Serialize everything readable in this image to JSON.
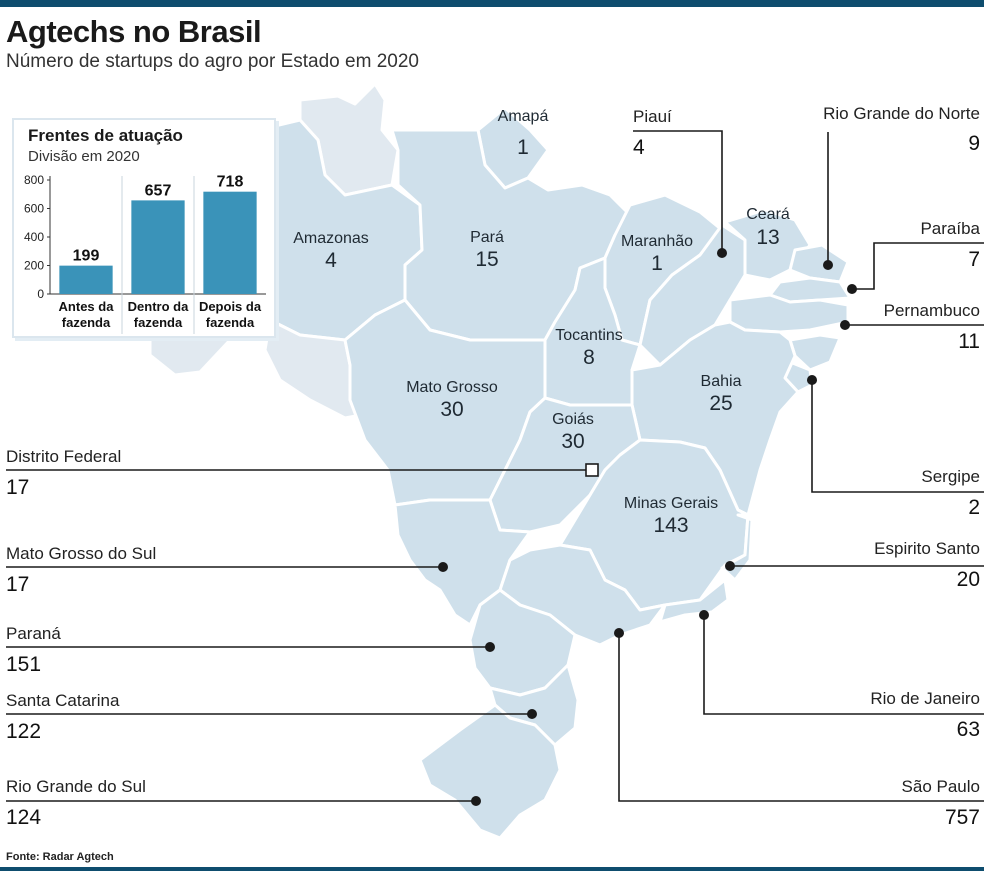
{
  "title": "Agtechs no Brasil",
  "subtitle": "Número de startups do agro por Estado em 2020",
  "source": "Fonte: Radar Agtech",
  "colors": {
    "bar": "#3a93b9",
    "map_fill": "#cfe0eb",
    "map_fill_light": "#e1e9f0",
    "map_stroke": "#ffffff",
    "accent_bar": "#0e4d6e"
  },
  "chart_data": [
    {
      "type": "bar",
      "title": "Frentes de atuação",
      "subtitle": "Divisão em 2020",
      "categories": [
        "Antes da fazenda",
        "Dentro da fazenda",
        "Depois da fazenda"
      ],
      "category_lines": [
        [
          "Antes da",
          "fazenda"
        ],
        [
          "Dentro da",
          "fazenda"
        ],
        [
          "Depois da",
          "fazenda"
        ]
      ],
      "values": [
        199,
        657,
        718
      ],
      "value_labels": [
        "199",
        "657",
        "718"
      ],
      "yticks": [
        "0",
        "200",
        "400",
        "600",
        "800"
      ],
      "ylim": [
        0,
        800
      ],
      "grid": false
    },
    {
      "type": "table",
      "title": "Número de startups do agro por Estado em 2020",
      "states": [
        {
          "name": "Amapá",
          "value": "1"
        },
        {
          "name": "Piauí",
          "value": "4"
        },
        {
          "name": "Rio Grande do Norte",
          "value": "9"
        },
        {
          "name": "Amazonas",
          "value": "4"
        },
        {
          "name": "Pará",
          "value": "15"
        },
        {
          "name": "Maranhão",
          "value": "1"
        },
        {
          "name": "Ceará",
          "value": "13"
        },
        {
          "name": "Paraíba",
          "value": "7"
        },
        {
          "name": "Pernambuco",
          "value": "11"
        },
        {
          "name": "Tocantins",
          "value": "8"
        },
        {
          "name": "Mato Grosso",
          "value": "30"
        },
        {
          "name": "Bahia",
          "value": "25"
        },
        {
          "name": "Goiás",
          "value": "30"
        },
        {
          "name": "Distrito Federal",
          "value": "17"
        },
        {
          "name": "Sergipe",
          "value": "2"
        },
        {
          "name": "Minas Gerais",
          "value": "143"
        },
        {
          "name": "Mato Grosso do Sul",
          "value": "17"
        },
        {
          "name": "Espírito Santo",
          "value": "20"
        },
        {
          "name": "Paraná",
          "value": "151"
        },
        {
          "name": "Santa Catarina",
          "value": "122"
        },
        {
          "name": "Rio de Janeiro",
          "value": "63"
        },
        {
          "name": "Rio Grande do Sul",
          "value": "124"
        },
        {
          "name": "São Paulo",
          "value": "757"
        }
      ]
    }
  ],
  "labels": {
    "amapa": {
      "name": "Amapá",
      "value": "1"
    },
    "piaui": {
      "name": "Piauí",
      "value": "4"
    },
    "rn": {
      "name": "Rio Grande do Norte",
      "value": "9"
    },
    "amazonas": {
      "name": "Amazonas",
      "value": "4"
    },
    "para": {
      "name": "Pará",
      "value": "15"
    },
    "maranhao": {
      "name": "Maranhão",
      "value": "1"
    },
    "ceara": {
      "name": "Ceará",
      "value": "13"
    },
    "paraiba": {
      "name": "Paraíba",
      "value": "7"
    },
    "pernambuco": {
      "name": "Pernambuco",
      "value": "11"
    },
    "tocantins": {
      "name": "Tocantins",
      "value": "8"
    },
    "mt": {
      "name": "Mato Grosso",
      "value": "30"
    },
    "bahia": {
      "name": "Bahia",
      "value": "25"
    },
    "goias": {
      "name": "Goiás",
      "value": "30"
    },
    "df": {
      "name": "Distrito Federal",
      "value": "17"
    },
    "sergipe": {
      "name": "Sergipe",
      "value": "2"
    },
    "mg": {
      "name": "Minas Gerais",
      "value": "143"
    },
    "ms": {
      "name": "Mato Grosso do Sul",
      "value": "17"
    },
    "es": {
      "name": "Espirito Santo",
      "value": "20"
    },
    "parana": {
      "name": "Paraná",
      "value": "151"
    },
    "sc": {
      "name": "Santa Catarina",
      "value": "122"
    },
    "rj": {
      "name": "Rio de Janeiro",
      "value": "63"
    },
    "rs": {
      "name": "Rio Grande do Sul",
      "value": "124"
    },
    "sp": {
      "name": "São Paulo",
      "value": "757"
    }
  }
}
